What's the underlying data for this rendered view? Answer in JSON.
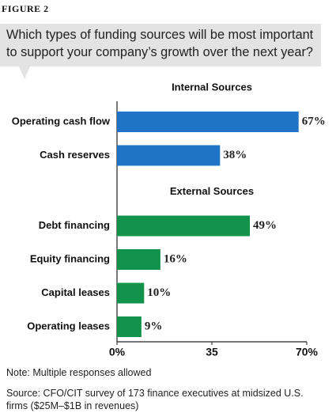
{
  "figure_label": "FIGURE 2",
  "chart_data": {
    "type": "bar",
    "orientation": "horizontal",
    "title": "Which types of funding sources will be most important to support your company’s growth over the next year?",
    "groups": [
      {
        "name": "Internal Sources",
        "color": "#1f74c8",
        "categories": [
          "Operating cash flow",
          "Cash reserves"
        ],
        "values": [
          67,
          38
        ],
        "value_labels": [
          "67%",
          "38%"
        ]
      },
      {
        "name": "External Sources",
        "color": "#12934b",
        "categories": [
          "Debt financing",
          "Equity financing",
          "Capital leases",
          "Operating leases"
        ],
        "values": [
          49,
          16,
          10,
          9
        ],
        "value_labels": [
          "49%",
          "16%",
          "10%",
          "9%"
        ]
      }
    ],
    "xlim": [
      0,
      70
    ],
    "xticks": [
      {
        "value": 0,
        "label": "0%"
      },
      35,
      {
        "value": 70,
        "label": "70%"
      }
    ]
  },
  "note": "Note: Multiple responses allowed",
  "source": "Source: CFO/CIT survey of 173 finance executives at midsized U.S. firms ($25M–$1B in revenues)"
}
